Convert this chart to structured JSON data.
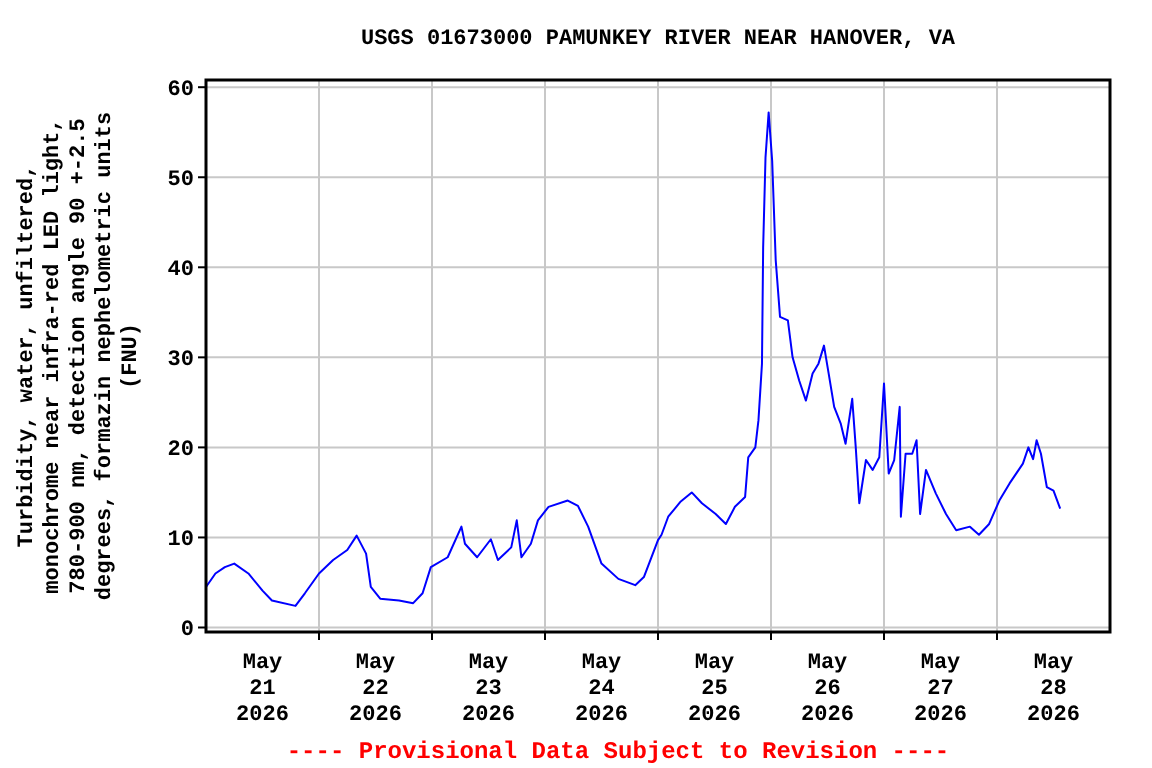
{
  "chart_data": {
    "type": "line",
    "title": "USGS 01673000 PAMUNKEY RIVER NEAR HANOVER, VA",
    "ylabel": "Turbidity, water, unfiltered, monochrome near infra-red LED light, 780-900 nm, detection angle 90 +-2.5 degrees, formazin nephelometric units (FNU)",
    "annotations": [
      "---- Provisional Data Subject to Revision ----"
    ],
    "series": [
      {
        "color": "#0000ff",
        "x": [
          "2026-05-21T00:00",
          "2026-05-21T02:00",
          "2026-05-21T04:00",
          "2026-05-21T06:00",
          "2026-05-21T09:00",
          "2026-05-21T12:00",
          "2026-05-21T14:00",
          "2026-05-21T19:00",
          "2026-05-21T21:00",
          "2026-05-22T00:00",
          "2026-05-22T03:00",
          "2026-05-22T06:00",
          "2026-05-22T08:00",
          "2026-05-22T10:00",
          "2026-05-22T11:00",
          "2026-05-22T13:00",
          "2026-05-22T17:00",
          "2026-05-22T20:00",
          "2026-05-22T22:00",
          "2026-05-22T23:45",
          "2026-05-23T03:20",
          "2026-05-23T06:15",
          "2026-05-23T07:00",
          "2026-05-23T09:35",
          "2026-05-23T12:30",
          "2026-05-23T14:00",
          "2026-05-23T16:50",
          "2026-05-23T18:00",
          "2026-05-23T19:00",
          "2026-05-23T21:00",
          "2026-05-23T22:30",
          "2026-05-24T00:45",
          "2026-05-24T04:50",
          "2026-05-24T07:00",
          "2026-05-24T09:10",
          "2026-05-24T12:00",
          "2026-05-24T15:35",
          "2026-05-24T19:10",
          "2026-05-24T21:00",
          "2026-05-25T00:00",
          "2026-05-25T00:45",
          "2026-05-25T02:10",
          "2026-05-25T04:50",
          "2026-05-25T07:10",
          "2026-05-25T09:20",
          "2026-05-25T12:15",
          "2026-05-25T14:25",
          "2026-05-25T16:20",
          "2026-05-25T18:30",
          "2026-05-25T19:10",
          "2026-05-25T20:40",
          "2026-05-25T21:20",
          "2026-05-25T22:05",
          "2026-05-25T22:20",
          "2026-05-25T22:50",
          "2026-05-25T23:30",
          "2026-05-26T00:15",
          "2026-05-26T01:00",
          "2026-05-26T01:55",
          "2026-05-26T03:35",
          "2026-05-26T04:35",
          "2026-05-26T06:00",
          "2026-05-26T07:25",
          "2026-05-26T08:50",
          "2026-05-26T10:05",
          "2026-05-26T11:15",
          "2026-05-26T12:15",
          "2026-05-26T13:25",
          "2026-05-26T14:50",
          "2026-05-26T15:50",
          "2026-05-26T17:15",
          "2026-05-26T18:00",
          "2026-05-26T18:45",
          "2026-05-26T20:10",
          "2026-05-26T21:35",
          "2026-05-26T23:00",
          "2026-05-27T00:00",
          "2026-05-27T01:00",
          "2026-05-27T02:10",
          "2026-05-27T03:20",
          "2026-05-27T03:35",
          "2026-05-27T04:35",
          "2026-05-27T06:00",
          "2026-05-27T06:55",
          "2026-05-27T07:40",
          "2026-05-27T08:55",
          "2026-05-27T11:00",
          "2026-05-27T13:10",
          "2026-05-27T15:20",
          "2026-05-27T18:15",
          "2026-05-27T20:10",
          "2026-05-27T22:20",
          "2026-05-28T00:30",
          "2026-05-28T02:40",
          "2026-05-28T05:30",
          "2026-05-28T06:40",
          "2026-05-28T07:40",
          "2026-05-28T08:25",
          "2026-05-28T09:20",
          "2026-05-28T10:35",
          "2026-05-28T12:00",
          "2026-05-28T13:25"
        ],
        "values": [
          4.5,
          6.0,
          6.7,
          7.1,
          6.0,
          4.1,
          3.0,
          2.4,
          3.8,
          6.0,
          7.5,
          8.6,
          10.2,
          8.2,
          4.5,
          3.2,
          3.0,
          2.7,
          3.8,
          6.7,
          7.8,
          11.2,
          9.3,
          7.8,
          9.8,
          7.5,
          8.9,
          11.9,
          7.8,
          9.3,
          11.9,
          13.4,
          14.1,
          13.5,
          11.2,
          7.1,
          5.4,
          4.7,
          5.6,
          9.7,
          10.3,
          12.3,
          14.0,
          15.0,
          13.8,
          12.6,
          11.5,
          13.4,
          14.5,
          18.9,
          20.0,
          23.0,
          29.3,
          42.2,
          52.2,
          57.2,
          51.8,
          40.8,
          34.5,
          34.1,
          30.0,
          27.4,
          25.2,
          28.2,
          29.3,
          31.3,
          28.2,
          24.5,
          22.6,
          20.4,
          25.4,
          20.0,
          13.8,
          18.6,
          17.5,
          18.9,
          27.1,
          17.1,
          18.6,
          24.5,
          12.3,
          19.3,
          19.3,
          20.8,
          12.6,
          17.5,
          14.9,
          12.6,
          10.8,
          11.2,
          10.3,
          11.5,
          14.1,
          16.0,
          18.2,
          20.0,
          18.7,
          20.8,
          19.3,
          15.6,
          15.2,
          13.2
        ]
      }
    ],
    "xlim": [
      "2026-05-21",
      "2026-05-29"
    ],
    "xticks": [
      {
        "value": "2026-05-21T12:00",
        "label": "May\n21\n2026"
      },
      {
        "value": "2026-05-22",
        "label": null
      },
      {
        "value": "2026-05-22T12:00",
        "label": "May\n22\n2026"
      },
      {
        "value": "2026-05-23",
        "label": null
      },
      {
        "value": "2026-05-23T12:00",
        "label": "May\n23\n2026"
      },
      {
        "value": "2026-05-24",
        "label": null
      },
      {
        "value": "2026-05-24T12:00",
        "label": "May\n24\n2026"
      },
      {
        "value": "2026-05-25",
        "label": null
      },
      {
        "value": "2026-05-25T12:00",
        "label": "May\n25\n2026"
      },
      {
        "value": "2026-05-26",
        "label": null
      },
      {
        "value": "2026-05-26T12:00",
        "label": "May\n26\n2026"
      },
      {
        "value": "2026-05-27",
        "label": null
      },
      {
        "value": "2026-05-27T12:00",
        "label": "May\n27\n2026"
      },
      {
        "value": "2026-05-28",
        "label": null
      },
      {
        "value": "2026-05-28T12:00",
        "label": "May\n28\n2026"
      }
    ],
    "ylim": [
      -0.5,
      60.8
    ],
    "yticks": [
      0,
      10,
      20,
      30,
      40,
      50,
      60
    ],
    "grid": true,
    "marker": "none",
    "line_style": "solid"
  }
}
